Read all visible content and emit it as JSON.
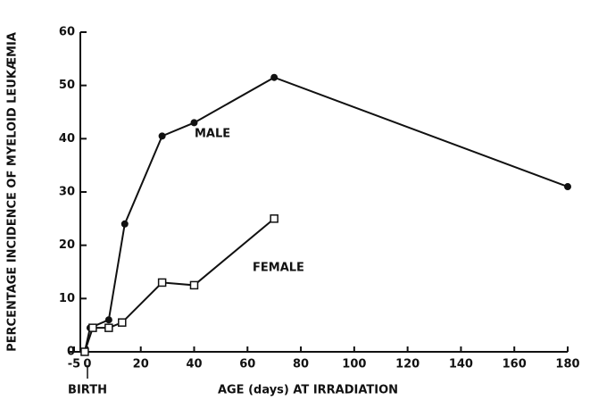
{
  "chart_data": {
    "type": "line",
    "ylabel": "PERCENTAGE INCIDENCE OF MYELOID LEUKÆMIA",
    "xlabel": "AGE (days) AT IRRADIATION",
    "annotations": [
      "MALE",
      "FEMALE",
      "BIRTH"
    ],
    "series": [
      {
        "name": "MALE",
        "color": "#111111",
        "marker": "circle",
        "x": [
          -1,
          1,
          8,
          14,
          28,
          40,
          70,
          180
        ],
        "values": [
          0,
          4.5,
          6,
          24,
          40.5,
          43,
          51.5,
          31
        ]
      },
      {
        "name": "FEMALE",
        "color": "#111111",
        "marker": "square",
        "x": [
          -1,
          2,
          8,
          13,
          28,
          40,
          70
        ],
        "values": [
          0,
          4.5,
          4.5,
          5.5,
          13,
          12.5,
          25
        ]
      }
    ],
    "xlim": [
      -7,
      180
    ],
    "xticks": [
      -5,
      0,
      20,
      40,
      60,
      80,
      100,
      120,
      140,
      160,
      180
    ],
    "ylim": [
      0,
      60
    ],
    "yticks": [
      0,
      10,
      20,
      30,
      40,
      50,
      60
    ],
    "grid": false
  }
}
